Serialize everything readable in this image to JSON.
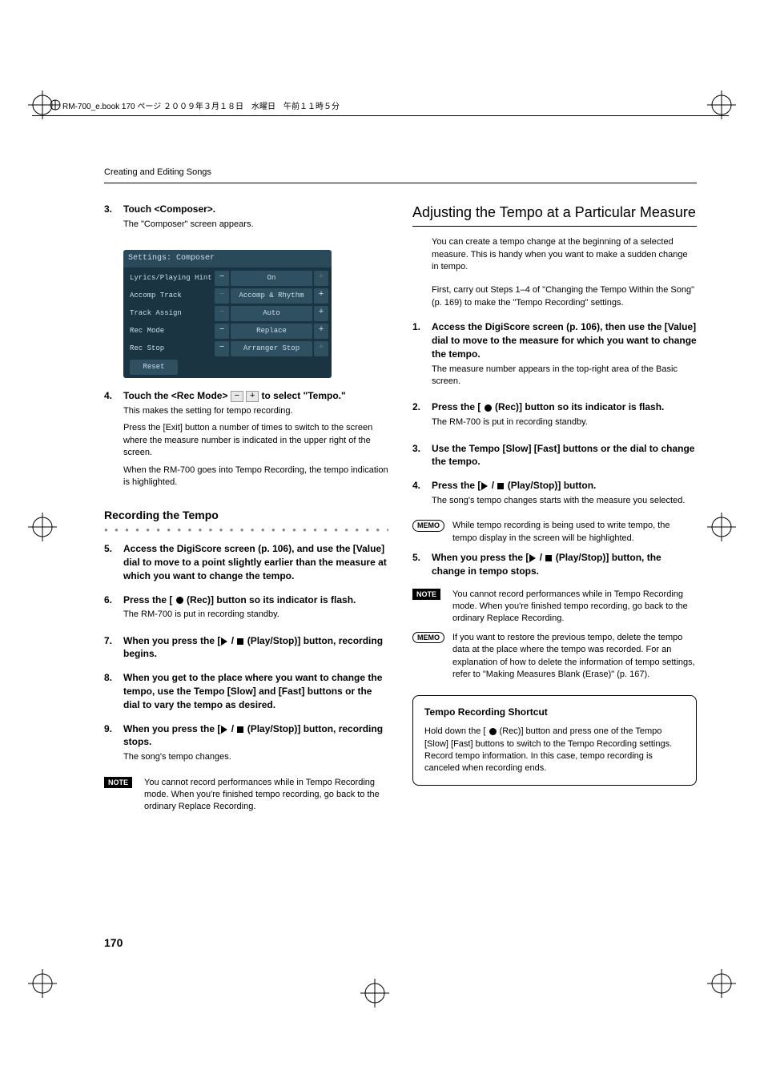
{
  "header_line": "RM-700_e.book  170 ページ  ２００９年３月１８日　水曜日　午前１１時５分",
  "section_header": "Creating and Editing Songs",
  "page_number": "170",
  "left": {
    "step3": {
      "title": "Touch <Composer>.",
      "text": "The \"Composer\" screen appears."
    },
    "screenshot": {
      "title": "Settings: Composer",
      "rows": [
        {
          "label": "Lyrics/Playing Hint",
          "value": "On",
          "minus_disabled": false,
          "plus_disabled": true
        },
        {
          "label": "Accomp Track",
          "value": "Accomp & Rhythm",
          "minus_disabled": true,
          "plus_disabled": false
        },
        {
          "label": "Track Assign",
          "value": "Auto",
          "minus_disabled": true,
          "plus_disabled": false
        },
        {
          "label": "Rec Mode",
          "value": "Replace",
          "minus_disabled": false,
          "plus_disabled": false
        },
        {
          "label": "Rec Stop",
          "value": "Arranger Stop",
          "minus_disabled": false,
          "plus_disabled": true
        }
      ],
      "reset": "Reset"
    },
    "step4": {
      "title_before": "Touch the <Rec Mode> ",
      "title_after": " to select \"Tempo.\"",
      "text1": "This makes the setting for tempo recording.",
      "text2": "Press the [Exit] button a number of times to switch to the screen where the measure number is indicated in the upper right of the screen.",
      "text3": "When the RM-700 goes into Tempo Recording, the tempo indication is highlighted."
    },
    "subheading": "Recording the Tempo",
    "step5": {
      "title": "Access the DigiScore screen (p. 106), and use the [Value] dial to move to a point slightly earlier than the measure at which you want to change the tempo."
    },
    "step6": {
      "title_before": "Press the [ ",
      "title_after": " (Rec)] button so its indicator is flash.",
      "text": "The RM-700 is put in recording standby."
    },
    "step7": {
      "title_before": "When you press the [",
      "title_after": " (Play/Stop)] button, recording begins."
    },
    "step8": {
      "title": "When you get to the place where you want to change the tempo, use the Tempo [Slow] and [Fast] buttons or the dial to vary the tempo as desired."
    },
    "step9": {
      "title_before": "When you press the [",
      "title_after": " (Play/Stop)] button, recording stops.",
      "text": "The song's tempo changes."
    },
    "note": "You cannot record performances while in Tempo Recording mode. When you're finished tempo recording, go back to the ordinary Replace Recording."
  },
  "right": {
    "title": "Adjusting the Tempo at a Particular Measure",
    "intro1": "You can create a tempo change at the beginning of a selected measure. This is handy when you want to make a sudden change in tempo.",
    "intro2": "First, carry out Steps 1–4 of \"Changing the Tempo Within the Song\" (p. 169) to make the \"Tempo Recording\" settings.",
    "step1": {
      "title": "Access the DigiScore screen (p. 106), then use the [Value] dial to move to the measure for which you want to change the tempo.",
      "text": "The measure number appears in the top-right area of the Basic screen."
    },
    "step2": {
      "title_before": "Press the [ ",
      "title_after": " (Rec)] button so its indicator is flash.",
      "text": "The RM-700 is put in recording standby."
    },
    "step3": {
      "title": "Use the Tempo [Slow] [Fast] buttons or the dial to change the tempo."
    },
    "step4": {
      "title_before": "Press the [",
      "title_after": " (Play/Stop)] button.",
      "text": "The song's tempo changes starts with the measure you selected."
    },
    "memo1": "While tempo recording is being used to write tempo, the tempo display in the screen will be highlighted.",
    "step5": {
      "title_before": "When you press the [",
      "title_after": " (Play/Stop)] button, the change in tempo stops."
    },
    "note": "You cannot record performances while in Tempo Recording mode. When you're finished tempo recording, go back to the ordinary Replace Recording.",
    "memo2": "If you want to restore the previous tempo, delete the tempo data at the place where the tempo was recorded. For an explanation of how to delete the information of tempo settings, refer to \"Making Measures Blank (Erase)\" (p. 167).",
    "shortcut": {
      "title": "Tempo Recording Shortcut",
      "body_before": "Hold down the [ ",
      "body_after": " (Rec)] button and press one of the Tempo [Slow] [Fast] buttons to switch to the Tempo Recording settings. Record tempo information. In this case, tempo recording is canceled when recording ends."
    }
  },
  "labels": {
    "note": "NOTE",
    "memo": "MEMO"
  }
}
